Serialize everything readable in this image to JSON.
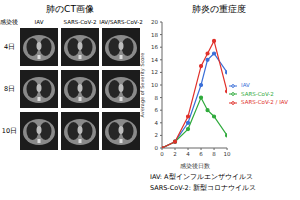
{
  "ct_images": {
    "title": "肺のCT画像",
    "row_header": "感染後",
    "columns": [
      "IAV",
      "SARS-CoV-2",
      "IAV/SARS-CoV-2"
    ],
    "rows": [
      "4日",
      "8日",
      "10日"
    ]
  },
  "chart_data": {
    "type": "line",
    "title": "肺炎の重症度",
    "x_label": "感染後日数",
    "y_label": "Average of Severity Score",
    "x": [
      0,
      2,
      4,
      6,
      7,
      8,
      10
    ],
    "xlim": [
      0,
      10
    ],
    "xticks": [
      0,
      2,
      4,
      6,
      8,
      10
    ],
    "ylim": [
      0,
      20
    ],
    "yticks": [
      0,
      2,
      4,
      6,
      8,
      10,
      12,
      14,
      16,
      18,
      20
    ],
    "grid": false,
    "legend": "right",
    "series": [
      {
        "name": "IAV",
        "color": "#3a6fd8",
        "marker": "circle",
        "values": [
          0,
          1,
          4,
          10,
          14,
          15,
          12
        ]
      },
      {
        "name": "SARS-CoV-2",
        "color": "#2faa3c",
        "marker": "circle",
        "values": [
          0,
          1,
          3,
          8,
          6,
          5,
          2
        ]
      },
      {
        "name": "SARS-CoV-2 / IAV",
        "color": "#e0302a",
        "marker": "circle",
        "values": [
          0,
          1,
          5,
          13,
          15,
          17,
          9
        ]
      }
    ]
  },
  "notes": [
    "IAV: A型インフルエンザウイルス",
    "SARS-CoV-2: 新型コロナウイルス"
  ]
}
